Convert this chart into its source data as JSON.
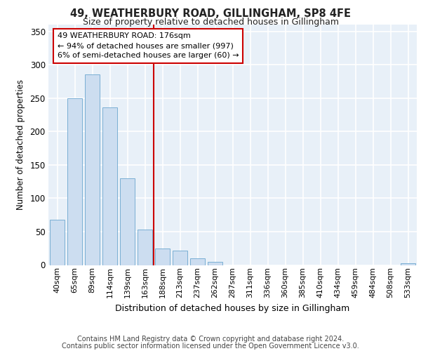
{
  "title": "49, WEATHERBURY ROAD, GILLINGHAM, SP8 4FE",
  "subtitle": "Size of property relative to detached houses in Gillingham",
  "xlabel": "Distribution of detached houses by size in Gillingham",
  "ylabel": "Number of detached properties",
  "categories": [
    "40sqm",
    "65sqm",
    "89sqm",
    "114sqm",
    "139sqm",
    "163sqm",
    "188sqm",
    "213sqm",
    "237sqm",
    "262sqm",
    "287sqm",
    "311sqm",
    "336sqm",
    "360sqm",
    "385sqm",
    "410sqm",
    "434sqm",
    "459sqm",
    "484sqm",
    "508sqm",
    "533sqm"
  ],
  "values": [
    68,
    250,
    285,
    236,
    130,
    53,
    25,
    22,
    10,
    5,
    0,
    0,
    0,
    0,
    0,
    0,
    0,
    0,
    0,
    0,
    3
  ],
  "bar_color": "#ccddf0",
  "bar_edge_color": "#7aafd4",
  "reference_line_x": 5.5,
  "reference_line_color": "#cc0000",
  "annotation_text": "49 WEATHERBURY ROAD: 176sqm\n← 94% of detached houses are smaller (997)\n6% of semi-detached houses are larger (60) →",
  "annotation_box_color": "#cc0000",
  "ylim": [
    0,
    360
  ],
  "yticks": [
    0,
    50,
    100,
    150,
    200,
    250,
    300,
    350
  ],
  "background_color": "#e8f0f8",
  "grid_color": "#ffffff",
  "footer_line1": "Contains HM Land Registry data © Crown copyright and database right 2024.",
  "footer_line2": "Contains public sector information licensed under the Open Government Licence v3.0."
}
